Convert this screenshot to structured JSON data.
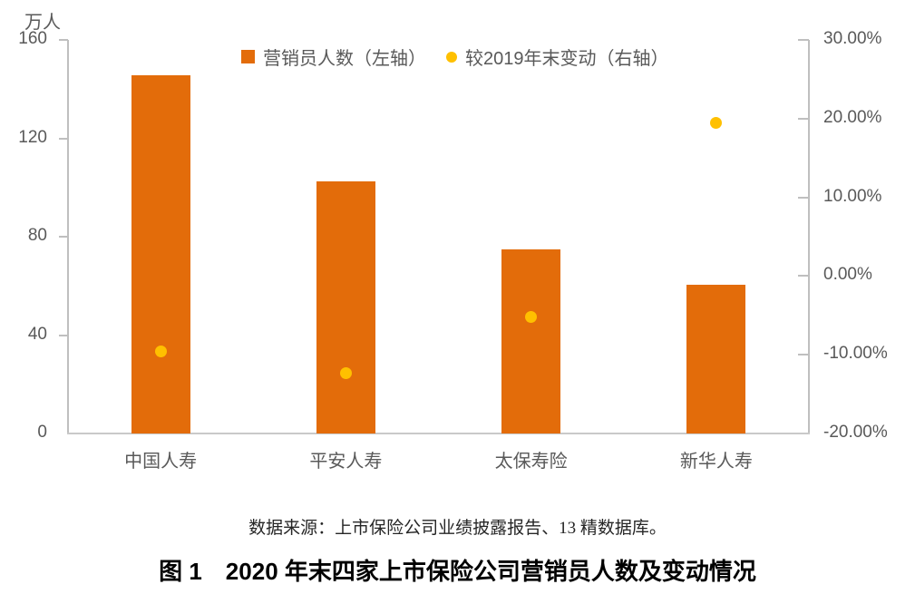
{
  "figure": {
    "title": "图 1　2020 年末四家上市保险公司营销员人数及变动情况",
    "source": "数据来源：上市保险公司业绩披露报告、13 精数据库。"
  },
  "chart_data": {
    "type": "bar",
    "overlay": "scatter",
    "title": "图 1　2020 年末四家上市保险公司营销员人数及变动情况",
    "categories": [
      "中国人寿",
      "平安人寿",
      "太保寿险",
      "新华人寿"
    ],
    "series": [
      {
        "name": "营销员人数（左轴）",
        "type": "bar",
        "axis": "left",
        "unit": "万人",
        "values": [
          145.8,
          102.4,
          74.9,
          60.6
        ],
        "color": "#E36C0A"
      },
      {
        "name": "较2019年末变动（右轴）",
        "type": "scatter",
        "axis": "right",
        "unit": "%",
        "values": [
          -9.6,
          -12.3,
          -5.2,
          19.5
        ],
        "color": "#FFC000"
      }
    ],
    "left_axis": {
      "label": "万人",
      "min": 0,
      "max": 160,
      "ticks": [
        {
          "label": "160",
          "value": 160
        },
        {
          "label": "120",
          "value": 120
        },
        {
          "label": "80",
          "value": 80
        },
        {
          "label": "40",
          "value": 40
        },
        {
          "label": "0",
          "value": 0
        }
      ]
    },
    "right_axis": {
      "min": -20,
      "max": 30,
      "ticks": [
        {
          "label": "30.00%",
          "value": 30
        },
        {
          "label": "20.00%",
          "value": 20
        },
        {
          "label": "10.00%",
          "value": 10
        },
        {
          "label": "0.00%",
          "value": 0
        },
        {
          "label": "-10.00%",
          "value": -10
        },
        {
          "label": "-20.00%",
          "value": -20
        }
      ]
    },
    "legend_position": "top",
    "grid": false,
    "colors": {
      "bar": "#E36C0A",
      "dot": "#FFC000",
      "axis_line": "#BFBFBF",
      "baseline": "#C9C9C9",
      "label_text": "#595959",
      "title_text": "#000000"
    }
  }
}
